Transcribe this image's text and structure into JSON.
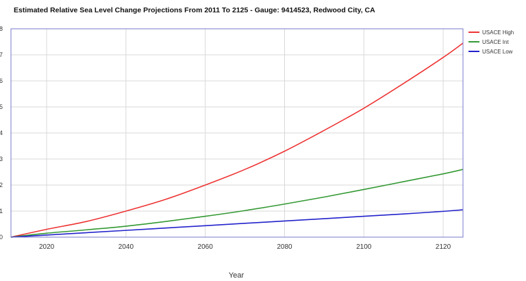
{
  "chart_data": {
    "type": "line",
    "title": "Estimated Relative Sea Level Change Projections From 2011 To 2125 - Gauge: 9414523, Redwood City, CA",
    "xlabel": "Year",
    "ylabel": "",
    "xlim": [
      2011,
      2125
    ],
    "ylim": [
      0,
      8
    ],
    "xticks": [
      2020,
      2040,
      2060,
      2080,
      2100,
      2120
    ],
    "yticks": [
      0,
      1,
      2,
      3,
      4,
      5,
      6,
      7,
      8
    ],
    "grid": true,
    "legend_position": "right",
    "x": [
      2011,
      2020,
      2030,
      2040,
      2050,
      2060,
      2070,
      2080,
      2090,
      2100,
      2110,
      2120,
      2125
    ],
    "series": [
      {
        "name": "USACE High",
        "color": "#ee3333",
        "values": [
          0.0,
          0.3,
          0.6,
          1.0,
          1.45,
          2.0,
          2.6,
          3.3,
          4.1,
          4.95,
          5.9,
          6.9,
          7.45
        ]
      },
      {
        "name": "USACE Int",
        "color": "#339933",
        "values": [
          0.0,
          0.15,
          0.28,
          0.42,
          0.6,
          0.8,
          1.02,
          1.27,
          1.54,
          1.83,
          2.13,
          2.43,
          2.6
        ]
      },
      {
        "name": "USACE Low",
        "color": "#2222cc",
        "values": [
          0.0,
          0.08,
          0.17,
          0.26,
          0.35,
          0.44,
          0.53,
          0.62,
          0.71,
          0.8,
          0.89,
          0.99,
          1.05
        ]
      }
    ]
  }
}
